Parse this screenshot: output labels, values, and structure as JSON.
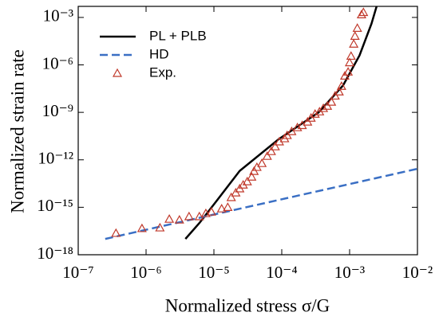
{
  "chart_data": {
    "type": "scatter",
    "xlabel": "Normalized stress  σ/G",
    "ylabel": "Normalized strain rate",
    "xscale": "log",
    "yscale": "log",
    "xlim": [
      1e-07,
      0.01
    ],
    "ylim": [
      1e-18,
      0.005
    ],
    "xticks": [
      {
        "value": 1e-07,
        "label": "10⁻⁷"
      },
      {
        "value": 1e-06,
        "label": "10⁻⁶"
      },
      {
        "value": 1e-05,
        "label": "10⁻⁵"
      },
      {
        "value": 0.0001,
        "label": "10⁻⁴"
      },
      {
        "value": 0.001,
        "label": "10⁻³"
      },
      {
        "value": 0.01,
        "label": "10⁻²"
      }
    ],
    "yticks": [
      {
        "value": 1e-18,
        "label": "10⁻¹⁸"
      },
      {
        "value": 1e-15,
        "label": "10⁻¹⁵"
      },
      {
        "value": 1e-12,
        "label": "10⁻¹²"
      },
      {
        "value": 1e-09,
        "label": "10⁻⁹"
      },
      {
        "value": 1e-06,
        "label": "10⁻⁶"
      },
      {
        "value": 0.001,
        "label": "10⁻³"
      }
    ],
    "legend": "upper left",
    "series": [
      {
        "name": "PL + PLB",
        "color": "#000000",
        "mark": "line",
        "dash": false,
        "x": [
          3.8e-06,
          6.1e-06,
          1.05e-05,
          2.4e-05,
          9e-05,
          0.00035,
          0.0008,
          0.0014,
          0.0021,
          0.0025
        ],
        "values": [
          1e-17,
          1e-16,
          2e-15,
          2e-13,
          2e-11,
          1e-09,
          5e-08,
          4e-06,
          0.0004,
          0.005
        ]
      },
      {
        "name": "HD",
        "color": "#3a6fc4",
        "mark": "line",
        "dash": true,
        "x": [
          2.5e-07,
          0.01
        ],
        "values": [
          1e-17,
          2.7e-13
        ]
      },
      {
        "name": "Exp.",
        "color": "#c0392b",
        "mark": "triangle",
        "dash": false,
        "x": [
          3.6e-07,
          8.7e-07,
          1.6e-06,
          2.2e-06,
          3.1e-06,
          4.3e-06,
          6.1e-06,
          7.6e-06,
          9.2e-06,
          1.3e-05,
          1.6e-05,
          1.8e-05,
          2.1e-05,
          2.4e-05,
          2.7e-05,
          3.1e-05,
          3.6e-05,
          3.9e-05,
          4.3e-05,
          5.1e-05,
          6.1e-05,
          7e-05,
          8e-05,
          9.2e-05,
          0.00011,
          0.00012,
          0.00014,
          0.00017,
          0.0002,
          0.00024,
          0.00027,
          0.00031,
          0.00036,
          0.00041,
          0.00047,
          0.00054,
          0.00061,
          0.0007,
          0.00076,
          0.00085,
          0.00095,
          0.001,
          0.00105,
          0.00115,
          0.0012,
          0.0013,
          0.0015,
          0.0016
        ],
        "values": [
          2.3e-17,
          4.6e-17,
          5.1e-17,
          1.8e-16,
          1.6e-16,
          2.6e-16,
          2.6e-16,
          4.1e-16,
          5.1e-16,
          8.1e-16,
          1e-15,
          4.2e-15,
          8.3e-15,
          1.5e-14,
          2.6e-14,
          4.2e-14,
          8.3e-14,
          1.9e-13,
          3.4e-13,
          6e-13,
          1.7e-12,
          3.4e-12,
          6.8e-12,
          1.4e-11,
          2.2e-11,
          3.5e-11,
          6.2e-11,
          1.1e-10,
          1.5e-10,
          2.5e-10,
          4.4e-10,
          7.8e-10,
          1.1e-09,
          1.8e-09,
          2.5e-09,
          4.5e-09,
          1.1e-08,
          2e-08,
          4.5e-08,
          2e-07,
          3.6e-07,
          1.4e-06,
          3.6e-06,
          2.1e-05,
          6.6e-05,
          0.00021,
          0.0015,
          0.0021
        ]
      }
    ]
  }
}
